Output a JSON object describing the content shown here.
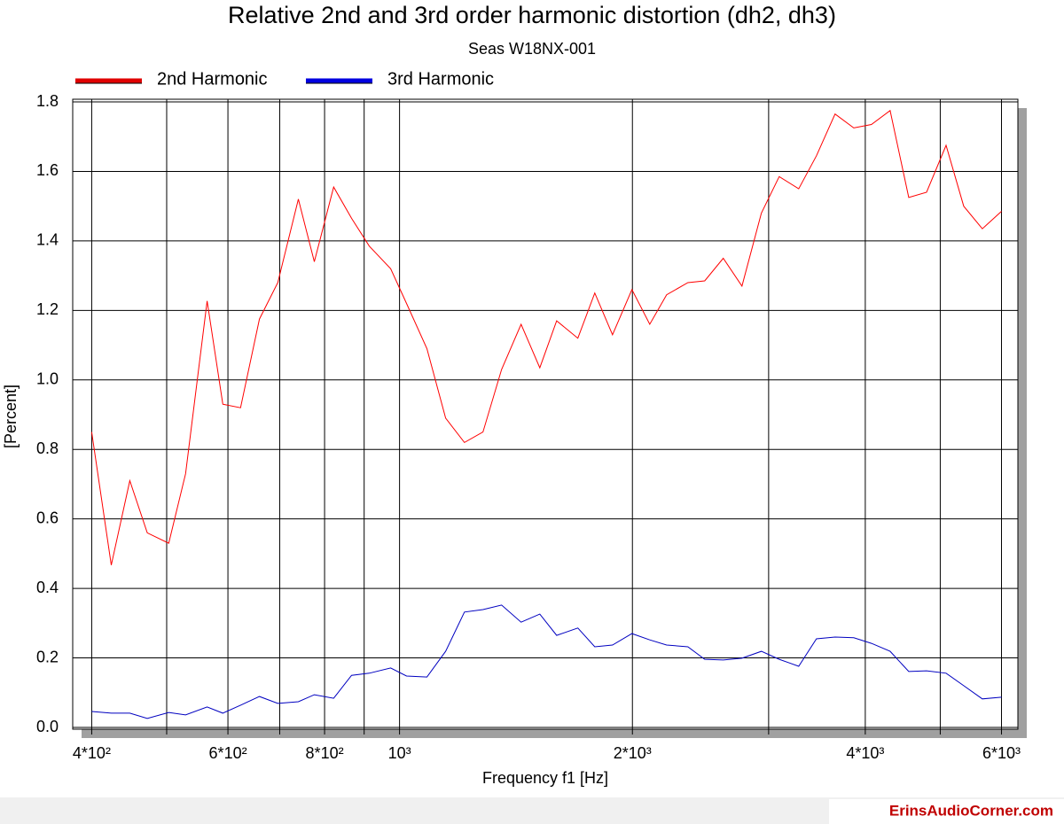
{
  "chart_data": {
    "type": "line",
    "title": "Relative 2nd and 3rd order harmonic distortion (dh2, dh3)",
    "subtitle": "Seas W18NX-001",
    "x_label": "Frequency f1  [Hz]",
    "y_label": "[Percent]",
    "watermark": "ErinsAudioCorner.com",
    "x_log": true,
    "grid": true,
    "legend": "top-left",
    "xlim": [
      378,
      6300
    ],
    "ylim": [
      0,
      1.8
    ],
    "xticks": [
      {
        "value": 400,
        "label": "4*10²"
      },
      {
        "value": 600,
        "label": "6*10²"
      },
      {
        "value": 800,
        "label": "8*10²"
      },
      {
        "value": 1000,
        "label": "10³"
      },
      {
        "value": 2000,
        "label": "2*10³"
      },
      {
        "value": 4000,
        "label": "4*10³"
      },
      {
        "value": 6000,
        "label": "6*10³"
      }
    ],
    "x_minor_gridlines": [
      500,
      700,
      900,
      3000,
      5000
    ],
    "yticks": [
      {
        "value": 0,
        "label": "0.0"
      },
      0.2,
      0.4,
      0.6,
      0.8,
      {
        "value": 1,
        "label": "1.0"
      },
      1.2,
      1.4,
      1.6,
      1.8
    ],
    "x": [
      400,
      424,
      448,
      472,
      503,
      529,
      564,
      591,
      623,
      659,
      696,
      740,
      776,
      822,
      867,
      914,
      974,
      1021,
      1085,
      1147,
      1213,
      1282,
      1355,
      1436,
      1518,
      1596,
      1700,
      1788,
      1885,
      1997,
      2106,
      2214,
      2359,
      2480,
      2621,
      2771,
      2936,
      3096,
      3281,
      3459,
      3656,
      3865,
      4074,
      4307,
      4553,
      4800,
      5087,
      5362,
      5668,
      6000
    ],
    "series": [
      {
        "name": "2nd Harmonic",
        "color": "#ff0000",
        "legend_color": "#e00000",
        "values": [
          0.85,
          0.467,
          0.71,
          0.56,
          0.53,
          0.73,
          1.227,
          0.93,
          0.92,
          1.175,
          1.28,
          1.52,
          1.34,
          1.555,
          1.465,
          1.385,
          1.32,
          1.22,
          1.09,
          0.89,
          0.82,
          0.85,
          1.03,
          1.16,
          1.035,
          1.17,
          1.12,
          1.25,
          1.13,
          1.26,
          1.16,
          1.245,
          1.28,
          1.285,
          1.35,
          1.27,
          1.48,
          1.585,
          1.55,
          1.645,
          1.765,
          1.725,
          1.735,
          1.775,
          1.525,
          1.54,
          1.675,
          1.5,
          1.435,
          1.485
        ]
      },
      {
        "name": "3rd Harmonic",
        "color": "#0000c0",
        "legend_color": "#0000e0",
        "values": [
          0.046,
          0.041,
          0.041,
          0.026,
          0.043,
          0.036,
          0.059,
          0.041,
          0.064,
          0.089,
          0.069,
          0.074,
          0.094,
          0.084,
          0.15,
          0.156,
          0.171,
          0.148,
          0.145,
          0.219,
          0.332,
          0.339,
          0.352,
          0.303,
          0.326,
          0.265,
          0.286,
          0.232,
          0.237,
          0.27,
          0.252,
          0.237,
          0.232,
          0.196,
          0.194,
          0.199,
          0.219,
          0.196,
          0.176,
          0.255,
          0.26,
          0.258,
          0.242,
          0.219,
          0.161,
          0.163,
          0.156,
          0.12,
          0.082,
          0.087
        ]
      }
    ]
  }
}
